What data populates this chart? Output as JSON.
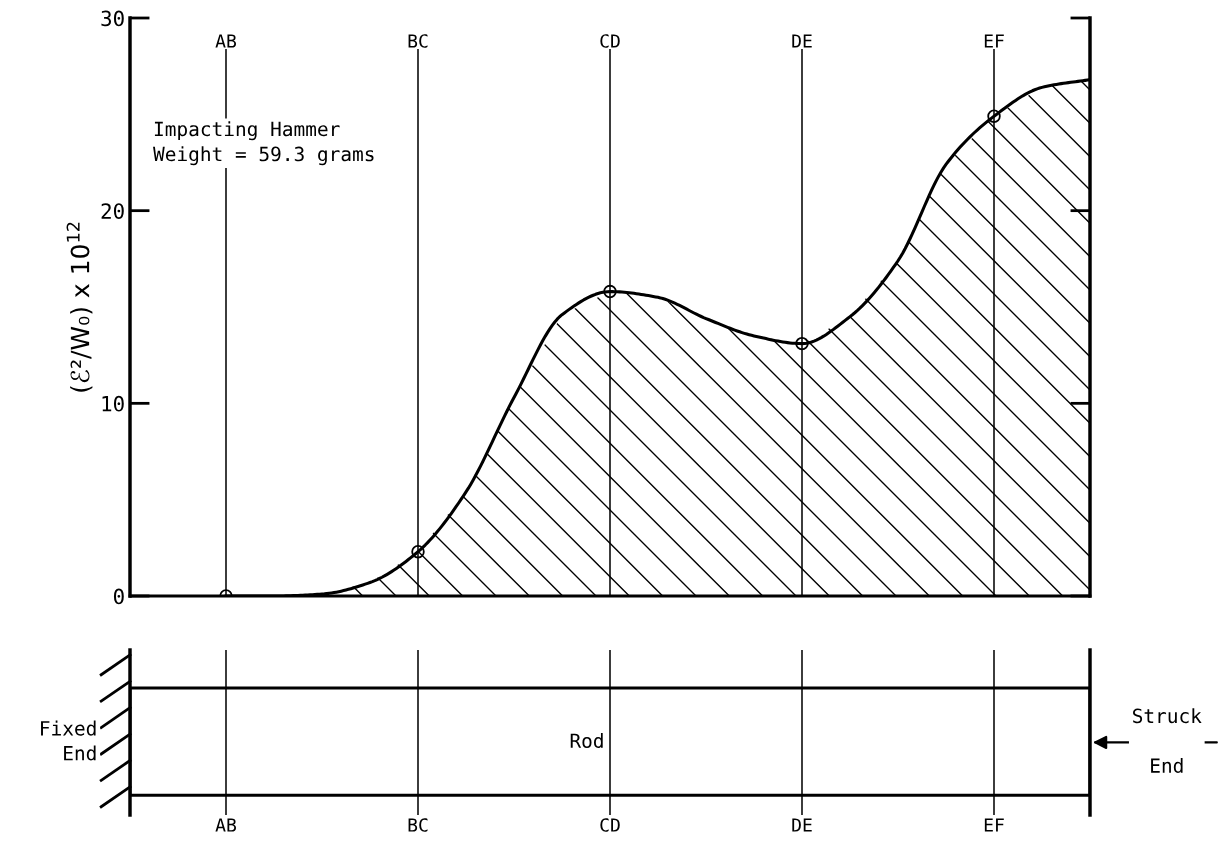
{
  "chart_data": {
    "type": "area",
    "ylabel": "(ℰ²/W₀) x 10$^{12}$",
    "categories": [
      null,
      null,
      "AB",
      null,
      null,
      null,
      "BC",
      null,
      null,
      null,
      "CD",
      null,
      null,
      null,
      "DE",
      null,
      null,
      null,
      "EF",
      null,
      null
    ],
    "ylim": [
      0,
      30
    ],
    "yticks": [
      0,
      10,
      20,
      30
    ],
    "series": [
      {
        "color": "#000000",
        "values": [
          null,
          null,
          0,
          0,
          0.1,
          0.7,
          2.3,
          5.4,
          10.3,
          14.6,
          15.8,
          15.5,
          14.4,
          13.5,
          13.1,
          14.5,
          17.4,
          22.4,
          24.9,
          26.4,
          26.8
        ]
      },
      {
        "type": "scatter",
        "color": "#000000",
        "marker": "circle",
        "values": [
          null,
          null,
          0,
          null,
          null,
          null,
          2.3,
          null,
          null,
          null,
          15.8,
          null,
          null,
          null,
          13.1,
          null,
          null,
          null,
          24.9,
          null,
          null
        ]
      }
    ],
    "ref_lines": [
      {
        "axis": "x",
        "value": "AB",
        "color": "#000000"
      },
      {
        "axis": "x",
        "value": "BC",
        "color": "#000000"
      },
      {
        "axis": "x",
        "value": "CD",
        "color": "#000000"
      },
      {
        "axis": "x",
        "value": "DE",
        "color": "#000000"
      },
      {
        "axis": "x",
        "value": "EF",
        "color": "#000000"
      }
    ],
    "annotations": [
      "Impacting Hammer\nWeight = 59.3 grams",
      "Fixed\nEnd",
      "Rod",
      "Struck\n\nEnd"
    ],
    "grid": false,
    "legend": false
  }
}
